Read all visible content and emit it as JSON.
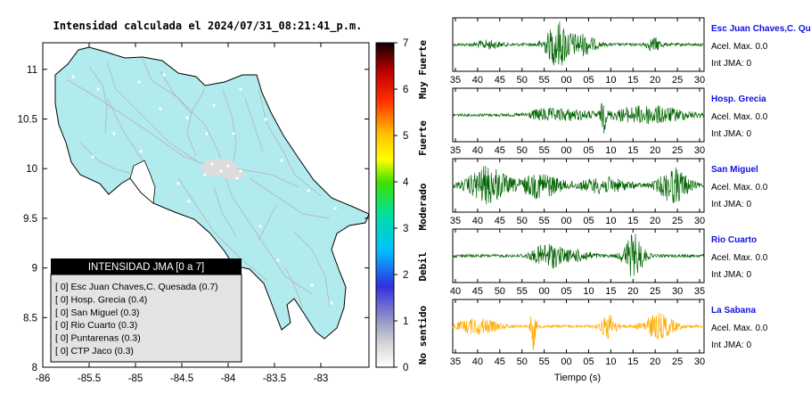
{
  "map": {
    "title": "Intensidad calculada el 2024/07/31_08:21:41_p.m.",
    "x_ticks": [
      "-86",
      "-85.5",
      "-85",
      "-84.5",
      "-84",
      "-83.5",
      "-83"
    ],
    "y_ticks": [
      "8",
      "8.5",
      "9",
      "9.5",
      "10",
      "10.5",
      "11"
    ],
    "legend": {
      "title": "INTENSIDAD JMA [0 a 7]",
      "items": [
        "[ 0]  Esc Juan Chaves,C. Quesada (0.7)",
        "[ 0]  Hosp. Grecia (0.4)",
        "[ 0]  San Miguel (0.3)",
        "[ 0]  Rio Cuarto (0.3)",
        "[ 0]  Puntarenas (0.3)",
        "[ 0]  CTP Jaco (0.3)"
      ]
    }
  },
  "colorbar": {
    "ticks": [
      "0",
      "1",
      "2",
      "3",
      "4",
      "5",
      "6",
      "7"
    ],
    "labels": [
      "No sentido",
      "Debil",
      "Moderado",
      "Fuerte",
      "Muy Fuerte"
    ]
  },
  "waveforms": [
    {
      "station": "Esc Juan Chaves,C. Qu",
      "accel": "Acel. Max. 0.0",
      "intensity": "Int JMA: 0",
      "ticks": [
        "35",
        "40",
        "45",
        "50",
        "55",
        "00",
        "05",
        "10",
        "15",
        "20",
        "25",
        "30"
      ],
      "color": "#006400"
    },
    {
      "station": "Hosp. Grecia",
      "accel": "Acel. Max. 0.0",
      "intensity": "Int JMA: 0",
      "ticks": [
        "35",
        "40",
        "45",
        "50",
        "55",
        "00",
        "05",
        "10",
        "15",
        "20",
        "25",
        "30"
      ],
      "color": "#006400"
    },
    {
      "station": "San Miguel",
      "accel": "Acel. Max. 0.0",
      "intensity": "Int JMA: 0",
      "ticks": [
        "35",
        "40",
        "45",
        "50",
        "55",
        "00",
        "05",
        "10",
        "15",
        "20",
        "25",
        "30"
      ],
      "color": "#006400"
    },
    {
      "station": "Rio Cuarto",
      "accel": "Acel. Max. 0.0",
      "intensity": "Int JMA: 0",
      "ticks": [
        "40",
        "45",
        "50",
        "55",
        "00",
        "05",
        "10",
        "15",
        "20",
        "25",
        "30",
        "35"
      ],
      "color": "#006400"
    },
    {
      "station": "La Sabana",
      "accel": "Acel. Max. 0.0",
      "intensity": "Int JMA: 0",
      "ticks": [
        "35",
        "40",
        "45",
        "50",
        "55",
        "00",
        "05",
        "10",
        "15",
        "20",
        "25",
        "30"
      ],
      "color": "#ffaa00"
    }
  ],
  "xlabel": "Tiempo (s)",
  "chart_data": [
    {
      "type": "scatter",
      "title": "Intensidad calculada el 2024/07/31_08:21:41_p.m.",
      "xlim": [
        -86,
        -82.6
      ],
      "ylim": [
        8,
        11.3
      ],
      "colorbar_range": [
        0,
        7
      ],
      "legend_placement": "bottom-left"
    },
    {
      "type": "line",
      "xlabel": "Tiempo (s)",
      "ylabel": "",
      "series": [
        {
          "name": "Esc Juan Chaves,C. Qu",
          "peak_at_tick": "00"
        },
        {
          "name": "Hosp. Grecia",
          "peak_at_tick": "10"
        },
        {
          "name": "San Miguel",
          "peak_at_tick": "45"
        },
        {
          "name": "Rio Cuarto",
          "peak_at_tick": "20"
        },
        {
          "name": "La Sabana",
          "peak_at_tick": "50"
        }
      ]
    }
  ]
}
